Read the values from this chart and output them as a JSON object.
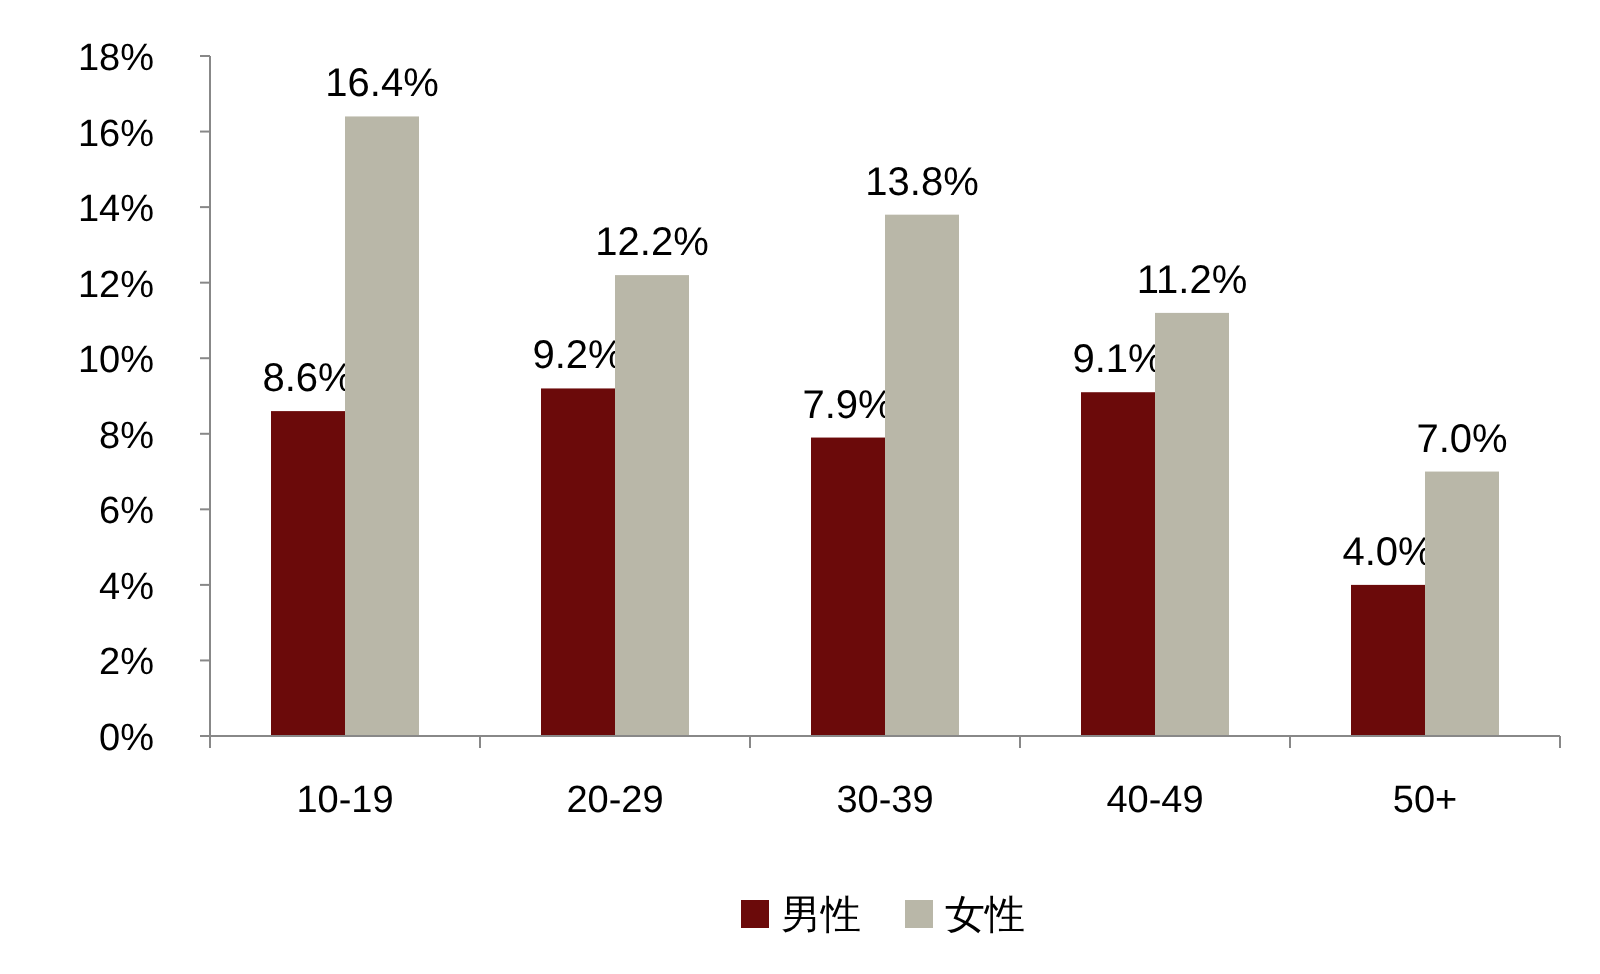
{
  "chart_data": {
    "type": "bar",
    "categories": [
      "10-19",
      "20-29",
      "30-39",
      "40-49",
      "50+"
    ],
    "series": [
      {
        "name": "男性",
        "color": "#6b0a0a",
        "values": [
          8.6,
          9.2,
          7.9,
          9.1,
          4.0
        ],
        "value_labels": [
          "8.6%",
          "9.2%",
          "7.9%",
          "9.1%",
          "4.0%"
        ]
      },
      {
        "name": "女性",
        "color": "#b9b7a8",
        "values": [
          16.4,
          12.2,
          13.8,
          11.2,
          7.0
        ],
        "value_labels": [
          "16.4%",
          "12.2%",
          "13.8%",
          "11.2%",
          "7.0%"
        ]
      }
    ],
    "ylim": [
      0,
      18
    ],
    "yticks": [
      {
        "value": 0,
        "label": "0%"
      },
      {
        "value": 2,
        "label": "2%"
      },
      {
        "value": 4,
        "label": "4%"
      },
      {
        "value": 6,
        "label": "6%"
      },
      {
        "value": 8,
        "label": "8%"
      },
      {
        "value": 10,
        "label": "10%"
      },
      {
        "value": 12,
        "label": "12%"
      },
      {
        "value": 14,
        "label": "14%"
      },
      {
        "value": 16,
        "label": "16%"
      },
      {
        "value": 18,
        "label": "18%"
      }
    ],
    "legend": "bottom"
  }
}
